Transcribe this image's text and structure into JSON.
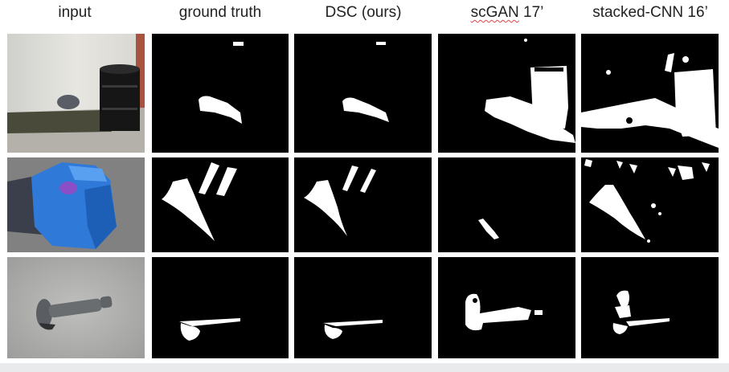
{
  "figure": {
    "columns": [
      {
        "label": "input"
      },
      {
        "label": "ground truth"
      },
      {
        "label": "DSC (ours)"
      },
      {
        "label": "scGAN 17’",
        "first": "scGAN",
        "rest": " 17’"
      },
      {
        "label": "stacked-CNN 16’"
      }
    ],
    "rows": [
      {
        "subject": "barrel"
      },
      {
        "subject": "jerry-can"
      },
      {
        "subject": "bolt"
      }
    ]
  },
  "colors": {
    "mask_background": "#000000",
    "mask_foreground": "#ffffff",
    "spellcheck_underline": "#e04545"
  }
}
